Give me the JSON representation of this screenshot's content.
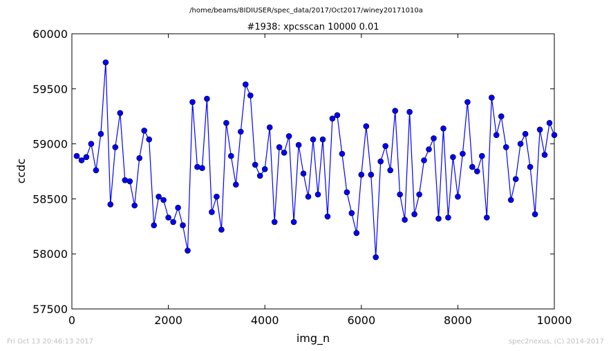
{
  "footer": {
    "timestamp": "Fri Oct 13 20:46:13 2017",
    "credit": "spec2nexus, (C) 2014-2017"
  },
  "chart_data": {
    "type": "line",
    "suptitle": "/home/beams/8IDIUSER/spec_data/2017/Oct2017/winey20171010a",
    "title": "#1938: xpcsscan 10000 0.01",
    "xlabel": "img_n",
    "ylabel": "ccdc",
    "xlim": [
      0,
      10000
    ],
    "ylim": [
      57500,
      60000
    ],
    "xticks": [
      0,
      2000,
      4000,
      6000,
      8000,
      10000
    ],
    "yticks": [
      57500,
      58000,
      58500,
      59000,
      59500,
      60000
    ],
    "grid": false,
    "line_color": "#0000ff",
    "marker_color": "#0000ff",
    "series": [
      {
        "x": [
          100,
          200,
          300,
          400,
          500,
          600,
          700,
          800,
          900,
          1000,
          1100,
          1200,
          1300,
          1400,
          1500,
          1600,
          1700,
          1800,
          1900,
          2000,
          2100,
          2200,
          2300,
          2400,
          2500,
          2600,
          2700,
          2800,
          2900,
          3000,
          3100,
          3200,
          3300,
          3400,
          3500,
          3600,
          3700,
          3800,
          3900,
          4000,
          4100,
          4200,
          4300,
          4400,
          4500,
          4600,
          4700,
          4800,
          4900,
          5000,
          5100,
          5200,
          5300,
          5400,
          5500,
          5600,
          5700,
          5800,
          5900,
          6000,
          6100,
          6200,
          6300,
          6400,
          6500,
          6600,
          6700,
          6800,
          6900,
          7000,
          7100,
          7200,
          7300,
          7400,
          7500,
          7600,
          7700,
          7800,
          7900,
          8000,
          8100,
          8200,
          8300,
          8400,
          8500,
          8600,
          8700,
          8800,
          8900,
          9000,
          9100,
          9200,
          9300,
          9400,
          9500,
          9600,
          9700,
          9800,
          9900,
          10000
        ],
        "y": [
          58890,
          58850,
          58880,
          59000,
          58760,
          59090,
          59740,
          58450,
          58970,
          59280,
          58670,
          58660,
          58440,
          58870,
          59120,
          59040,
          58260,
          58520,
          58490,
          58330,
          58290,
          58420,
          58260,
          58030,
          59380,
          58790,
          58780,
          59410,
          58380,
          58520,
          58220,
          59190,
          58890,
          58630,
          59110,
          59540,
          59440,
          58810,
          58710,
          58770,
          59150,
          58290,
          58970,
          58920,
          59070,
          58290,
          58990,
          58730,
          58520,
          59040,
          58540,
          59040,
          58340,
          59230,
          59260,
          58910,
          58560,
          58370,
          58190,
          58720,
          59160,
          58720,
          57970,
          58840,
          58980,
          58760,
          59300,
          58540,
          58310,
          59290,
          58360,
          58540,
          58850,
          58950,
          59050,
          58320,
          59140,
          58330,
          58880,
          58520,
          58910,
          59380,
          58790,
          58750,
          58890,
          58330,
          59420,
          59080,
          59250,
          58970,
          58490,
          58680,
          59000,
          59090,
          58790,
          58360,
          59130,
          58900,
          59190,
          59080
        ]
      }
    ]
  }
}
